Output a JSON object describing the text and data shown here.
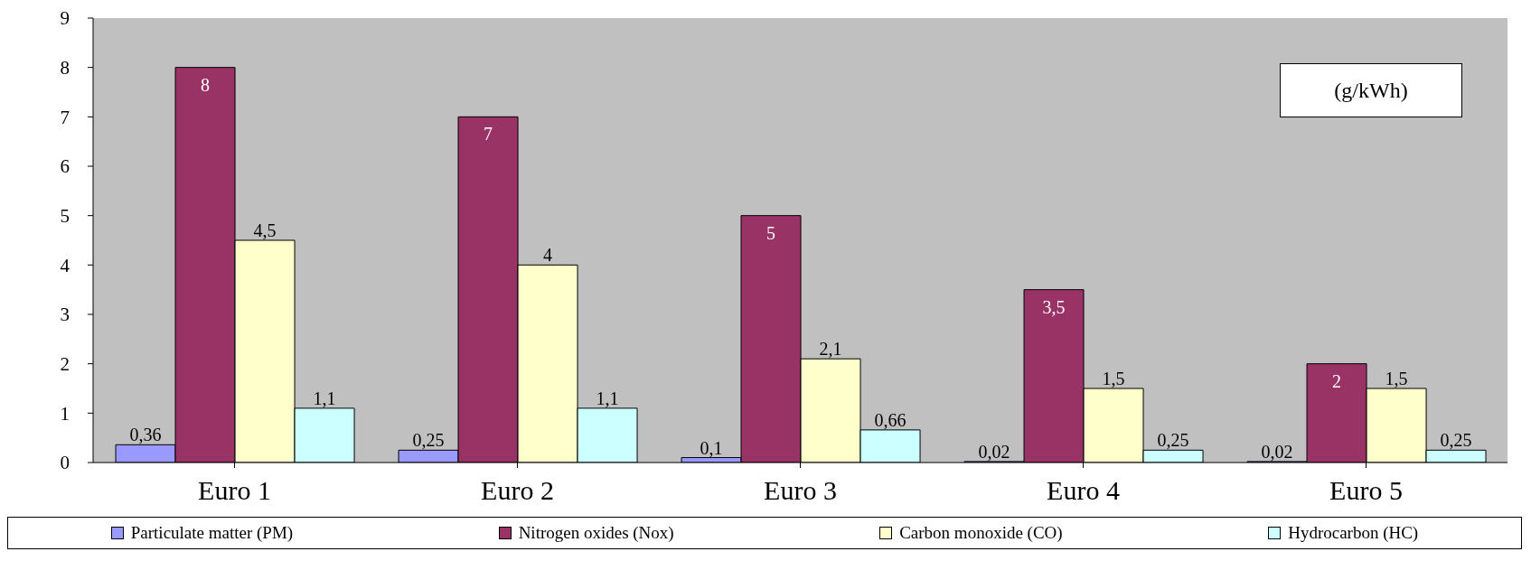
{
  "chart_data": {
    "type": "bar",
    "categories": [
      "Euro 1",
      "Euro 2",
      "Euro 3",
      "Euro 4",
      "Euro 5"
    ],
    "series": [
      {
        "name": "Particulate matter (PM)",
        "color": "#9999ff",
        "values": [
          0.36,
          0.25,
          0.1,
          0.02,
          0.02
        ],
        "value_labels": [
          "0,36",
          "0,25",
          "0,1",
          "0,02",
          "0,02"
        ]
      },
      {
        "name": "Nitrogen oxides (Nox)",
        "color": "#993366",
        "values": [
          8,
          7,
          5,
          3.5,
          2
        ],
        "value_labels": [
          "8",
          "7",
          "5",
          "3,5",
          "2"
        ]
      },
      {
        "name": "Carbon monoxide (CO)",
        "color": "#ffffcc",
        "values": [
          4.5,
          4,
          2.1,
          1.5,
          1.5
        ],
        "value_labels": [
          "4,5",
          "4",
          "2,1",
          "1,5",
          "1,5"
        ]
      },
      {
        "name": "Hydrocarbon (HC)",
        "color": "#ccffff",
        "values": [
          1.1,
          1.1,
          0.66,
          0.25,
          0.25
        ],
        "value_labels": [
          "1,1",
          "1,1",
          "0,66",
          "0,25",
          "0,25"
        ]
      }
    ],
    "ylim": [
      0,
      9
    ],
    "yticks": [
      0,
      1,
      2,
      3,
      4,
      5,
      6,
      7,
      8,
      9
    ],
    "annotations": [
      "(g/kWh)"
    ],
    "legend": "bottom"
  }
}
